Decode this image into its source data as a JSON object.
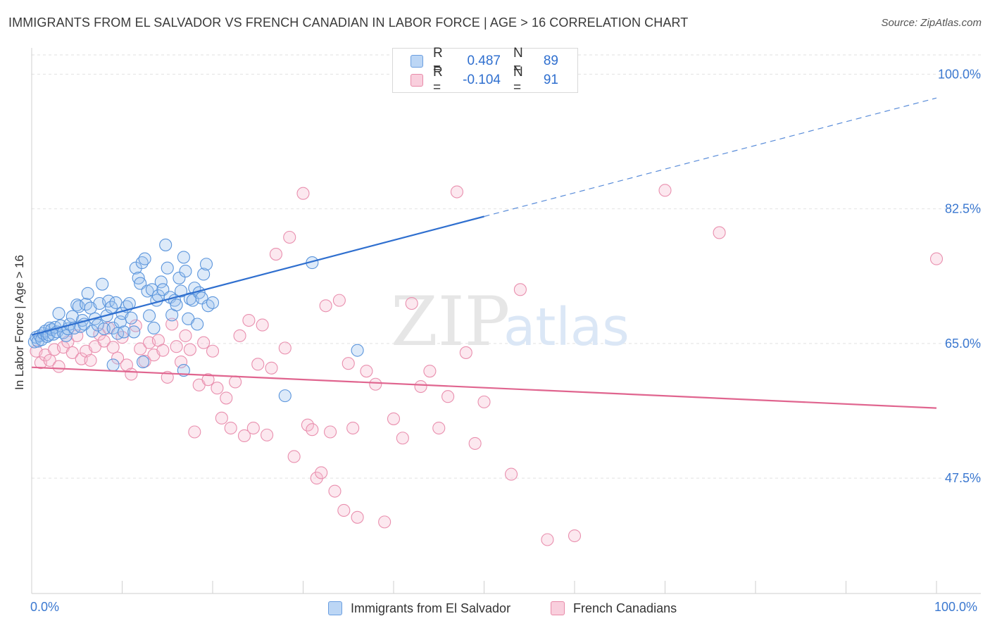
{
  "header": {
    "title": "IMMIGRANTS FROM EL SALVADOR VS FRENCH CANADIAN IN LABOR FORCE | AGE > 16 CORRELATION CHART",
    "source": "Source: ZipAtlas.com"
  },
  "watermark": {
    "zip": "ZIP",
    "atlas": "atlas"
  },
  "legend": {
    "rows": [
      {
        "r_label": "R =",
        "r_value": "0.487",
        "n_label": "N =",
        "n_value": "89",
        "color": "#a8c8f0",
        "border": "#6a9ee0"
      },
      {
        "r_label": "R =",
        "r_value": "-0.104",
        "n_label": "N =",
        "n_value": "91",
        "color": "#f7bfd1",
        "border": "#e88aa8"
      }
    ]
  },
  "bottom_legend": {
    "series1": "Immigrants from El Salvador",
    "series2": "French Canadians"
  },
  "axes": {
    "x_min_label": "0.0%",
    "x_max_label": "100.0%",
    "y_tick_labels": [
      "100.0%",
      "82.5%",
      "65.0%",
      "47.5%"
    ]
  },
  "chart_data": {
    "type": "scatter",
    "title": "IMMIGRANTS FROM EL SALVADOR VS FRENCH CANADIAN IN LABOR FORCE | AGE > 16 CORRELATION CHART",
    "xlabel": "",
    "ylabel": "In Labor Force | Age > 16",
    "xlim": [
      0,
      100
    ],
    "ylim": [
      32.5,
      102.5
    ],
    "y_ticks": [
      100.0,
      82.5,
      65.0,
      47.5
    ],
    "grid": true,
    "legend_position": "top-center",
    "colors": {
      "series1": "#5b95dc",
      "series2": "#e98fae",
      "trend1": "#2f6fcf",
      "trend2": "#e0658f"
    },
    "series": [
      {
        "name": "Immigrants from El Salvador",
        "trend": {
          "x0": 0,
          "y0": 66.1,
          "x1": 50,
          "y1": 81.5,
          "x_dash_end": 100,
          "y_dash_end": 96.9
        },
        "points": [
          [
            0.3,
            65.2
          ],
          [
            0.5,
            65.8
          ],
          [
            0.7,
            65.3
          ],
          [
            0.9,
            66.0
          ],
          [
            1.1,
            65.5
          ],
          [
            1.3,
            66.3
          ],
          [
            1.5,
            66.6
          ],
          [
            1.7,
            65.9
          ],
          [
            1.9,
            66.1
          ],
          [
            2.0,
            67.0
          ],
          [
            2.2,
            66.8
          ],
          [
            2.4,
            66.2
          ],
          [
            2.6,
            67.1
          ],
          [
            2.8,
            66.5
          ],
          [
            3.0,
            68.9
          ],
          [
            3.2,
            67.3
          ],
          [
            3.5,
            66.4
          ],
          [
            3.8,
            66.0
          ],
          [
            4.0,
            66.9
          ],
          [
            4.2,
            67.5
          ],
          [
            4.5,
            68.5
          ],
          [
            4.7,
            67.0
          ],
          [
            5.0,
            70.0
          ],
          [
            5.2,
            69.8
          ],
          [
            5.4,
            67.2
          ],
          [
            5.6,
            68.0
          ],
          [
            5.8,
            67.5
          ],
          [
            6.0,
            70.1
          ],
          [
            6.2,
            71.5
          ],
          [
            6.5,
            69.6
          ],
          [
            6.7,
            66.6
          ],
          [
            7.0,
            68.2
          ],
          [
            7.3,
            67.4
          ],
          [
            7.5,
            70.2
          ],
          [
            7.8,
            72.7
          ],
          [
            8.0,
            66.9
          ],
          [
            8.3,
            68.6
          ],
          [
            8.5,
            70.5
          ],
          [
            8.8,
            69.7
          ],
          [
            9.0,
            67.0
          ],
          [
            9.3,
            70.3
          ],
          [
            9.5,
            66.3
          ],
          [
            9.8,
            67.8
          ],
          [
            10.0,
            68.9
          ],
          [
            10.2,
            66.5
          ],
          [
            10.5,
            69.8
          ],
          [
            10.8,
            70.2
          ],
          [
            11.0,
            68.3
          ],
          [
            11.3,
            66.5
          ],
          [
            11.5,
            74.8
          ],
          [
            11.8,
            73.5
          ],
          [
            12.0,
            72.8
          ],
          [
            12.2,
            75.5
          ],
          [
            12.5,
            76.0
          ],
          [
            12.8,
            71.8
          ],
          [
            13.0,
            68.6
          ],
          [
            13.3,
            72.0
          ],
          [
            13.5,
            67.0
          ],
          [
            13.8,
            70.6
          ],
          [
            14.0,
            71.2
          ],
          [
            14.3,
            73.0
          ],
          [
            14.5,
            72.0
          ],
          [
            14.8,
            77.8
          ],
          [
            15.0,
            74.8
          ],
          [
            15.3,
            71.0
          ],
          [
            15.5,
            68.7
          ],
          [
            15.8,
            70.6
          ],
          [
            16.0,
            70.0
          ],
          [
            16.3,
            73.5
          ],
          [
            16.5,
            71.8
          ],
          [
            16.8,
            76.2
          ],
          [
            17.0,
            74.4
          ],
          [
            17.3,
            68.2
          ],
          [
            17.5,
            70.8
          ],
          [
            17.8,
            70.6
          ],
          [
            18.0,
            72.2
          ],
          [
            18.3,
            67.5
          ],
          [
            18.5,
            71.6
          ],
          [
            18.8,
            70.9
          ],
          [
            19.0,
            74.0
          ],
          [
            19.3,
            75.3
          ],
          [
            19.5,
            69.9
          ],
          [
            20.0,
            70.3
          ],
          [
            16.8,
            61.5
          ],
          [
            12.3,
            62.6
          ],
          [
            9.0,
            62.2
          ],
          [
            28.0,
            58.2
          ],
          [
            36.0,
            64.1
          ],
          [
            31.0,
            75.5
          ]
        ]
      },
      {
        "name": "French Canadians",
        "trend": {
          "x0": 0,
          "y0": 61.9,
          "x1": 100,
          "y1": 56.6
        },
        "points": [
          [
            0.5,
            64.0
          ],
          [
            1.0,
            62.5
          ],
          [
            1.5,
            63.5
          ],
          [
            2.0,
            62.8
          ],
          [
            2.5,
            64.2
          ],
          [
            3.0,
            62.0
          ],
          [
            3.5,
            64.5
          ],
          [
            4.0,
            65.2
          ],
          [
            4.5,
            63.8
          ],
          [
            5.0,
            66.0
          ],
          [
            5.5,
            63.0
          ],
          [
            6.0,
            64.0
          ],
          [
            6.5,
            62.8
          ],
          [
            7.0,
            64.6
          ],
          [
            7.5,
            66.2
          ],
          [
            8.0,
            65.3
          ],
          [
            8.5,
            67.0
          ],
          [
            9.0,
            64.5
          ],
          [
            9.5,
            63.1
          ],
          [
            10.0,
            65.8
          ],
          [
            10.5,
            62.2
          ],
          [
            11.0,
            61.0
          ],
          [
            11.5,
            67.3
          ],
          [
            12.0,
            64.3
          ],
          [
            12.5,
            62.7
          ],
          [
            13.0,
            65.1
          ],
          [
            13.5,
            63.5
          ],
          [
            14.0,
            65.4
          ],
          [
            14.5,
            64.1
          ],
          [
            15.0,
            60.6
          ],
          [
            15.5,
            67.5
          ],
          [
            16.0,
            64.6
          ],
          [
            16.5,
            62.6
          ],
          [
            17.0,
            66.0
          ],
          [
            17.5,
            64.2
          ],
          [
            18.0,
            53.5
          ],
          [
            18.5,
            59.6
          ],
          [
            19.0,
            65.1
          ],
          [
            19.5,
            60.3
          ],
          [
            20.0,
            64.0
          ],
          [
            20.5,
            59.2
          ],
          [
            21.0,
            55.3
          ],
          [
            21.5,
            57.9
          ],
          [
            22.0,
            54.0
          ],
          [
            22.5,
            60.0
          ],
          [
            23.0,
            66.0
          ],
          [
            23.5,
            53.0
          ],
          [
            24.0,
            68.0
          ],
          [
            24.5,
            54.0
          ],
          [
            25.0,
            62.3
          ],
          [
            25.5,
            67.4
          ],
          [
            26.0,
            53.1
          ],
          [
            26.5,
            61.8
          ],
          [
            27.0,
            76.6
          ],
          [
            28.0,
            64.4
          ],
          [
            28.5,
            78.8
          ],
          [
            29.0,
            50.3
          ],
          [
            30.0,
            84.5
          ],
          [
            30.5,
            54.4
          ],
          [
            31.0,
            53.8
          ],
          [
            31.5,
            47.5
          ],
          [
            32.0,
            48.2
          ],
          [
            32.5,
            69.9
          ],
          [
            33.0,
            53.5
          ],
          [
            33.5,
            45.8
          ],
          [
            34.0,
            70.6
          ],
          [
            34.5,
            43.3
          ],
          [
            35.0,
            62.4
          ],
          [
            35.5,
            54.0
          ],
          [
            36.0,
            42.4
          ],
          [
            37.0,
            61.4
          ],
          [
            38.0,
            59.7
          ],
          [
            39.0,
            41.8
          ],
          [
            40.0,
            55.2
          ],
          [
            41.0,
            52.7
          ],
          [
            42.0,
            70.2
          ],
          [
            43.0,
            59.4
          ],
          [
            44.0,
            61.4
          ],
          [
            45.0,
            54.0
          ],
          [
            46.0,
            58.1
          ],
          [
            47.0,
            84.7
          ],
          [
            48.0,
            63.8
          ],
          [
            49.0,
            52.0
          ],
          [
            50.0,
            57.4
          ],
          [
            53.0,
            48.0
          ],
          [
            54.0,
            72.0
          ],
          [
            57.0,
            39.5
          ],
          [
            60.0,
            40.0
          ],
          [
            70.0,
            84.9
          ],
          [
            76.0,
            79.4
          ],
          [
            100.0,
            76.0
          ]
        ]
      }
    ]
  }
}
